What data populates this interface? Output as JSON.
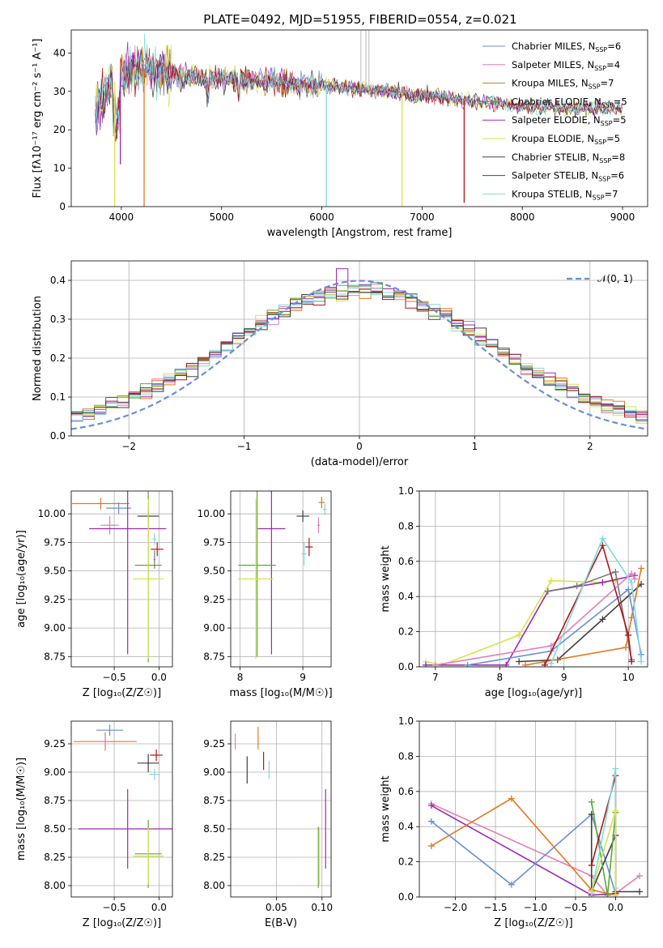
{
  "figure_title": "PLATE=0492, MJD=51955, FIBERID=0554, z=0.021",
  "colors": {
    "chabrier_miles": "#6a8fd6",
    "salpeter_miles": "#e37fb4",
    "kroupa_miles": "#b8860b",
    "chabrier_elodie": "#7a7a7a",
    "salpeter_elodie": "#9a2ab0",
    "kroupa_elodie": "#d8e24a",
    "chabrier_stelib": "#404040",
    "salpeter_stelib": "#b01717",
    "kroupa_stelib": "#7fd9e0",
    "orange": "#e07a1f",
    "green": "#5aa83a",
    "normal_curve": "#6a8fd6"
  },
  "chart_data": [
    {
      "id": "spectrum",
      "type": "line",
      "title": "PLATE=0492, MJD=51955, FIBERID=0554, z=0.021",
      "xlabel": "wavelength [Angstrom, rest frame]",
      "ylabel": "Flux [fλ10⁻¹⁷ erg cm⁻² s⁻¹ A⁻¹]",
      "xlim": [
        3500,
        9250
      ],
      "ylim": [
        0,
        46
      ],
      "xticks": [
        "4000",
        "5000",
        "6000",
        "7000",
        "8000",
        "9000"
      ],
      "yticks": [
        "0",
        "10",
        "20",
        "30",
        "40"
      ],
      "grid": false,
      "legend_position": "top-right",
      "legend": [
        {
          "label": "Chabrier MILES, N",
          "sub": "SSP",
          "suffix": "=6",
          "color": "chabrier_miles"
        },
        {
          "label": "Salpeter MILES, N",
          "sub": "SSP",
          "suffix": "=4",
          "color": "salpeter_miles"
        },
        {
          "label": "Kroupa MILES, N",
          "sub": "SSP",
          "suffix": "=7",
          "color": "kroupa_miles"
        },
        {
          "label": "Chabrier ELODIE, N",
          "sub": "SSP",
          "suffix": "=5",
          "color": "chabrier_elodie"
        },
        {
          "label": "Salpeter ELODIE, N",
          "sub": "SSP",
          "suffix": "=5",
          "color": "salpeter_elodie"
        },
        {
          "label": "Kroupa ELODIE, N",
          "sub": "SSP",
          "suffix": "=5",
          "color": "kroupa_elodie"
        },
        {
          "label": "Chabrier STELIB, N",
          "sub": "SSP",
          "suffix": "=8",
          "color": "chabrier_stelib"
        },
        {
          "label": "Salpeter STELIB, N",
          "sub": "SSP",
          "suffix": "=6",
          "color": "salpeter_stelib"
        },
        {
          "label": "Kroupa STELIB, N",
          "sub": "SSP",
          "suffix": "=7",
          "color": "kroupa_stelib"
        }
      ],
      "continuum": [
        [
          3750,
          25
        ],
        [
          3850,
          30
        ],
        [
          3950,
          33
        ],
        [
          4050,
          36
        ],
        [
          4200,
          36
        ],
        [
          4400,
          35
        ],
        [
          4600,
          34
        ],
        [
          4900,
          33.5
        ],
        [
          5200,
          33
        ],
        [
          5500,
          32.5
        ],
        [
          6000,
          31.5
        ],
        [
          6500,
          30.5
        ],
        [
          7000,
          29
        ],
        [
          7500,
          27.5
        ],
        [
          8000,
          26
        ],
        [
          8500,
          25.5
        ],
        [
          9000,
          25.5
        ]
      ],
      "deep_lines": [
        {
          "x": 3934,
          "ymin": 0,
          "color": "kroupa_elodie"
        },
        {
          "x": 4227,
          "ymin": 0,
          "color": "orange"
        },
        {
          "x": 6045,
          "ymin": 0,
          "color": "kroupa_stelib"
        },
        {
          "x": 6800,
          "ymin": 0,
          "color": "kroupa_elodie"
        },
        {
          "x": 7420,
          "ymin": 1,
          "color": "salpeter_stelib"
        },
        {
          "x": 3990,
          "ymin": 11,
          "color": "salpeter_elodie"
        }
      ]
    },
    {
      "id": "residual_histogram",
      "type": "histogram",
      "xlabel": "(data-model)/error",
      "ylabel": "Normed distribution",
      "xlim": [
        -2.5,
        2.5
      ],
      "ylim": [
        0,
        0.45
      ],
      "xticks": [
        "−2",
        "−1",
        "0",
        "1",
        "2"
      ],
      "yticks": [
        "0.0",
        "0.1",
        "0.2",
        "0.3",
        "0.4"
      ],
      "grid": true,
      "legend_position": "top-right",
      "legend": [
        {
          "label": "𝒩(0, 1)",
          "color": "normal_curve",
          "style": "dashed"
        }
      ],
      "bin_width": 0.1
    },
    {
      "id": "age_vs_Z",
      "type": "errorbar",
      "xlabel": "Z [log₁₀(Z/Z☉)]",
      "ylabel": "age  [log₁₀(age/yr)]",
      "xlim": [
        -0.98,
        0.15
      ],
      "ylim": [
        8.66,
        10.2
      ],
      "xticks": [
        "−0.5",
        "0.0"
      ],
      "yticks": [
        "8.75",
        "9.00",
        "9.25",
        "9.50",
        "9.75",
        "10.00"
      ],
      "grid": true,
      "points": [
        {
          "x": -0.65,
          "y": 10.09,
          "xerr": 0.32,
          "yerr": 0.05,
          "color": "orange"
        },
        {
          "x": -0.45,
          "y": 10.05,
          "xerr": 0.14,
          "yerr": 0.05,
          "color": "chabrier_miles"
        },
        {
          "x": -0.55,
          "y": 9.9,
          "xerr": 0.1,
          "yerr": 0.08,
          "color": "salpeter_miles"
        },
        {
          "x": -0.35,
          "y": 9.87,
          "xerr": 0.43,
          "yerr": 1.1,
          "color": "salpeter_elodie"
        },
        {
          "x": -0.12,
          "y": 9.98,
          "xerr": 0.12,
          "yerr": 0.05,
          "color": "chabrier_stelib"
        },
        {
          "x": -0.05,
          "y": 9.78,
          "xerr": 0.02,
          "yerr": 0.05,
          "color": "kroupa_stelib"
        },
        {
          "x": -0.02,
          "y": 9.69,
          "xerr": 0.07,
          "yerr": 0.06,
          "color": "salpeter_stelib"
        },
        {
          "x": -0.12,
          "y": 9.55,
          "xerr": 0.15,
          "yerr": 0.85,
          "color": "green"
        },
        {
          "x": -0.12,
          "y": 9.43,
          "xerr": 0.17,
          "yerr": 0.7,
          "color": "kroupa_elodie"
        },
        {
          "x": -0.05,
          "y": 9.6,
          "xerr": 0.01,
          "yerr": 0.08,
          "color": "chabrier_elodie"
        }
      ]
    },
    {
      "id": "age_vs_mass",
      "type": "errorbar",
      "xlabel": "mass [log₁₀(M/M☉)]",
      "ylabel": "",
      "xlim": [
        7.85,
        9.45
      ],
      "ylim": [
        8.66,
        10.2
      ],
      "xticks": [
        "8",
        "9"
      ],
      "yticks": [
        "8.75",
        "9.00",
        "9.25",
        "9.50",
        "9.75",
        "10.00"
      ],
      "grid": true,
      "points": [
        {
          "x": 9.3,
          "y": 10.1,
          "xerr": 0.05,
          "yerr": 0.05,
          "color": "orange"
        },
        {
          "x": 9.35,
          "y": 10.04,
          "xerr": 0.03,
          "yerr": 0.05,
          "color": "kroupa_stelib"
        },
        {
          "x": 9.25,
          "y": 9.9,
          "xerr": 0.02,
          "yerr": 0.07,
          "color": "salpeter_miles"
        },
        {
          "x": 9.0,
          "y": 9.98,
          "xerr": 0.1,
          "yerr": 0.05,
          "color": "chabrier_stelib"
        },
        {
          "x": 8.5,
          "y": 9.87,
          "xerr": 0.22,
          "yerr": 1.1,
          "color": "salpeter_elodie"
        },
        {
          "x": 9.1,
          "y": 9.71,
          "xerr": 0.06,
          "yerr": 0.08,
          "color": "salpeter_stelib"
        },
        {
          "x": 9.02,
          "y": 9.65,
          "xerr": 0.04,
          "yerr": 0.1,
          "color": "kroupa_stelib"
        },
        {
          "x": 8.27,
          "y": 9.55,
          "xerr": 0.3,
          "yerr": 0.8,
          "color": "green"
        },
        {
          "x": 8.25,
          "y": 9.43,
          "xerr": 0.28,
          "yerr": 0.7,
          "color": "kroupa_elodie"
        }
      ]
    },
    {
      "id": "massweight_vs_age",
      "type": "line",
      "xlabel": "age  [log₁₀(age/yr)]",
      "ylabel": "mass weight",
      "xlim": [
        6.75,
        10.3
      ],
      "ylim": [
        0,
        1.0
      ],
      "xticks": [
        "7",
        "8",
        "9",
        "10"
      ],
      "yticks": [
        "0.0",
        "0.2",
        "0.4",
        "0.6",
        "0.8",
        "1.0"
      ],
      "grid": true,
      "series": [
        {
          "color": "kroupa_elodie",
          "points": [
            [
              6.85,
              0.03
            ],
            [
              7.1,
              0.01
            ],
            [
              8.3,
              0.18
            ],
            [
              8.8,
              0.49
            ],
            [
              9.6,
              0.48
            ],
            [
              9.8,
              0.49
            ]
          ]
        },
        {
          "color": "salpeter_elodie",
          "points": [
            [
              6.85,
              0.01
            ],
            [
              8.1,
              0.01
            ],
            [
              8.75,
              0.43
            ],
            [
              9.6,
              0.48
            ],
            [
              10.1,
              0.52
            ]
          ]
        },
        {
          "color": "chabrier_elodie",
          "points": [
            [
              8.75,
              0.43
            ],
            [
              9.2,
              0.46
            ],
            [
              9.8,
              0.54
            ],
            [
              10.05,
              0.04
            ]
          ]
        },
        {
          "color": "chabrier_stelib",
          "points": [
            [
              8.3,
              0.03
            ],
            [
              8.9,
              0.04
            ],
            [
              9.6,
              0.27
            ],
            [
              10.2,
              0.47
            ]
          ]
        },
        {
          "color": "orange",
          "points": [
            [
              8.4,
              0.01
            ],
            [
              9.96,
              0.11
            ],
            [
              10.2,
              0.56
            ],
            [
              10.05,
              0.28
            ]
          ]
        },
        {
          "color": "salpeter_miles",
          "points": [
            [
              7.0,
              0.01
            ],
            [
              8.8,
              0.12
            ],
            [
              10.05,
              0.53
            ],
            [
              10.1,
              0.5
            ]
          ]
        },
        {
          "color": "chabrier_miles",
          "points": [
            [
              7.5,
              0.01
            ],
            [
              8.8,
              0.09
            ],
            [
              10.0,
              0.44
            ],
            [
              10.2,
              0.07
            ]
          ]
        },
        {
          "color": "salpeter_stelib",
          "points": [
            [
              8.7,
              0.01
            ],
            [
              9.6,
              0.69
            ],
            [
              10.0,
              0.18
            ],
            [
              10.05,
              0.03
            ]
          ]
        },
        {
          "color": "kroupa_stelib",
          "points": [
            [
              8.8,
              0.02
            ],
            [
              9.6,
              0.73
            ],
            [
              10.05,
              0.48
            ],
            [
              10.2,
              0.03
            ]
          ]
        }
      ]
    },
    {
      "id": "mass_vs_Z",
      "type": "errorbar",
      "xlabel": "Z [log₁₀(Z/Z☉)]",
      "ylabel": "mass [log₁₀(M/M☉)]",
      "xlim": [
        -0.98,
        0.15
      ],
      "ylim": [
        7.9,
        9.45
      ],
      "xticks": [
        "−0.5",
        "0.0"
      ],
      "yticks": [
        "8.00",
        "8.25",
        "8.50",
        "8.75",
        "9.00",
        "9.25"
      ],
      "grid": true,
      "points": [
        {
          "x": -0.6,
          "y": 9.27,
          "xerr": 0.35,
          "yerr": 0.08,
          "color": "orange"
        },
        {
          "x": -0.55,
          "y": 9.37,
          "xerr": 0.15,
          "yerr": 0.05,
          "color": "chabrier_miles"
        },
        {
          "x": -0.6,
          "y": 9.27,
          "xerr": 0.08,
          "yerr": 0.06,
          "color": "salpeter_miles"
        },
        {
          "x": -0.35,
          "y": 8.5,
          "xerr": 0.55,
          "yerr": 0.35,
          "color": "salpeter_elodie"
        },
        {
          "x": -0.12,
          "y": 9.08,
          "xerr": 0.12,
          "yerr": 0.08,
          "color": "chabrier_stelib"
        },
        {
          "x": -0.03,
          "y": 9.15,
          "xerr": 0.07,
          "yerr": 0.05,
          "color": "salpeter_stelib"
        },
        {
          "x": -0.05,
          "y": 8.98,
          "xerr": 0.06,
          "yerr": 0.05,
          "color": "kroupa_stelib"
        },
        {
          "x": -0.12,
          "y": 8.28,
          "xerr": 0.15,
          "yerr": 0.3,
          "color": "green"
        },
        {
          "x": -0.12,
          "y": 8.26,
          "xerr": 0.17,
          "yerr": 0.25,
          "color": "kroupa_elodie"
        }
      ]
    },
    {
      "id": "mass_vs_EBV",
      "type": "errorbar",
      "xlabel": "E(B-V)",
      "ylabel": "",
      "xlim": [
        0.0,
        0.11
      ],
      "ylim": [
        7.9,
        9.45
      ],
      "xticks": [
        "0.05",
        "0.10"
      ],
      "yticks": [
        "8.00",
        "8.25",
        "8.50",
        "8.75",
        "9.00",
        "9.25"
      ],
      "grid": true,
      "points": [
        {
          "x": 0.005,
          "y": 9.27,
          "xerr": 0,
          "yerr": 0.07,
          "color": "salpeter_miles"
        },
        {
          "x": 0.03,
          "y": 9.3,
          "xerr": 0,
          "yerr": 0.1,
          "color": "orange"
        },
        {
          "x": 0.018,
          "y": 9.02,
          "xerr": 0,
          "yerr": 0.12,
          "color": "chabrier_stelib"
        },
        {
          "x": 0.036,
          "y": 9.1,
          "xerr": 0,
          "yerr": 0.08,
          "color": "salpeter_stelib"
        },
        {
          "x": 0.042,
          "y": 9.02,
          "xerr": 0,
          "yerr": 0.08,
          "color": "kroupa_stelib"
        },
        {
          "x": 0.104,
          "y": 8.5,
          "xerr": 0,
          "yerr": 0.35,
          "color": "salpeter_elodie"
        },
        {
          "x": 0.096,
          "y": 8.25,
          "xerr": 0,
          "yerr": 0.27,
          "color": "green"
        },
        {
          "x": 0.097,
          "y": 8.26,
          "xerr": 0,
          "yerr": 0.25,
          "color": "kroupa_elodie"
        }
      ]
    },
    {
      "id": "massweight_vs_Z",
      "type": "line",
      "xlabel": "Z [log₁₀(Z/Z☉)]",
      "ylabel": "mass weight",
      "xlim": [
        -2.45,
        0.4
      ],
      "ylim": [
        0,
        1.0
      ],
      "xticks": [
        "−2.0",
        "−1.5",
        "−1.0",
        "−0.5",
        "0.0"
      ],
      "yticks": [
        "0.0",
        "0.2",
        "0.4",
        "0.6",
        "0.8",
        "1.0"
      ],
      "grid": true,
      "series": [
        {
          "color": "salpeter_miles",
          "points": [
            [
              -2.3,
              0.53
            ],
            [
              -0.3,
              0.12
            ],
            [
              -0.1,
              0.01
            ],
            [
              0.0,
              0.02
            ],
            [
              0.3,
              0.12
            ]
          ]
        },
        {
          "color": "salpeter_elodie",
          "points": [
            [
              -2.3,
              0.52
            ],
            [
              -0.3,
              0.01
            ],
            [
              0.0,
              0.02
            ]
          ]
        },
        {
          "color": "chabrier_miles",
          "points": [
            [
              -2.3,
              0.43
            ],
            [
              -1.3,
              0.07
            ],
            [
              -0.3,
              0.47
            ],
            [
              0.0,
              0.02
            ]
          ]
        },
        {
          "color": "orange",
          "points": [
            [
              -2.3,
              0.29
            ],
            [
              -1.3,
              0.56
            ],
            [
              -0.3,
              0.04
            ],
            [
              0.0,
              0.01
            ]
          ]
        },
        {
          "color": "chabrier_stelib",
          "points": [
            [
              -0.3,
              0.47
            ],
            [
              -0.3,
              0.03
            ],
            [
              0.0,
              0.35
            ],
            [
              0.0,
              0.03
            ],
            [
              0.3,
              0.03
            ]
          ]
        },
        {
          "color": "green",
          "points": [
            [
              -0.3,
              0.54
            ],
            [
              -0.1,
              0.01
            ],
            [
              0.0,
              0.48
            ]
          ]
        },
        {
          "color": "salpeter_stelib",
          "points": [
            [
              -0.3,
              0.18
            ],
            [
              0.0,
              0.69
            ],
            [
              0.0,
              0.02
            ]
          ]
        },
        {
          "color": "kroupa_stelib",
          "points": [
            [
              -0.3,
              0.02
            ],
            [
              0.0,
              0.73
            ],
            [
              0.0,
              0.05
            ]
          ]
        },
        {
          "color": "kroupa_elodie",
          "points": [
            [
              -0.3,
              0.03
            ],
            [
              0.0,
              0.49
            ],
            [
              0.0,
              0.01
            ]
          ]
        }
      ]
    }
  ]
}
